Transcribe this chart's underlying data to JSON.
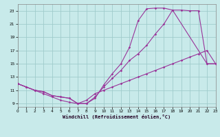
{
  "xlabel": "Windchill (Refroidissement éolien,°C)",
  "bg_color": "#c8eaea",
  "grid_color": "#a0cccc",
  "line_color": "#993399",
  "xlim": [
    0,
    23
  ],
  "ylim": [
    8.5,
    24.0
  ],
  "xticks": [
    0,
    1,
    2,
    3,
    4,
    5,
    6,
    7,
    8,
    9,
    10,
    11,
    12,
    13,
    14,
    15,
    16,
    17,
    18,
    19,
    20,
    21,
    22,
    23
  ],
  "yticks": [
    9,
    11,
    13,
    15,
    17,
    19,
    21,
    23
  ],
  "line1_x": [
    0,
    1,
    2,
    3,
    4,
    5,
    6,
    7,
    8,
    9,
    10,
    11,
    12,
    13,
    14,
    15,
    16,
    17,
    18,
    22,
    23
  ],
  "line1_y": [
    12.0,
    11.5,
    11.0,
    10.8,
    10.2,
    10.0,
    9.8,
    9.0,
    9.0,
    9.8,
    11.8,
    13.5,
    15.0,
    17.5,
    21.5,
    23.3,
    23.4,
    23.4,
    23.1,
    15.0,
    15.0
  ],
  "line2_x": [
    0,
    1,
    2,
    3,
    4,
    5,
    6,
    7,
    8,
    9,
    10,
    11,
    12,
    13,
    14,
    15,
    16,
    17,
    18,
    19,
    20,
    21,
    22,
    23
  ],
  "line2_y": [
    12.0,
    11.5,
    11.0,
    10.8,
    10.2,
    10.0,
    9.8,
    9.0,
    9.0,
    10.0,
    11.5,
    12.8,
    14.0,
    15.5,
    16.5,
    17.8,
    19.5,
    21.0,
    23.1,
    23.1,
    23.0,
    23.0,
    15.0,
    15.0
  ],
  "line3_x": [
    0,
    1,
    2,
    3,
    4,
    5,
    6,
    7,
    8,
    9,
    10,
    11,
    12,
    13,
    14,
    15,
    16,
    17,
    18,
    19,
    20,
    21,
    22,
    23
  ],
  "line3_y": [
    12.0,
    11.5,
    11.0,
    10.5,
    10.0,
    9.5,
    9.2,
    9.0,
    9.5,
    10.5,
    11.0,
    11.5,
    12.0,
    12.5,
    13.0,
    13.5,
    14.0,
    14.5,
    15.0,
    15.5,
    16.0,
    16.5,
    17.0,
    15.0
  ]
}
